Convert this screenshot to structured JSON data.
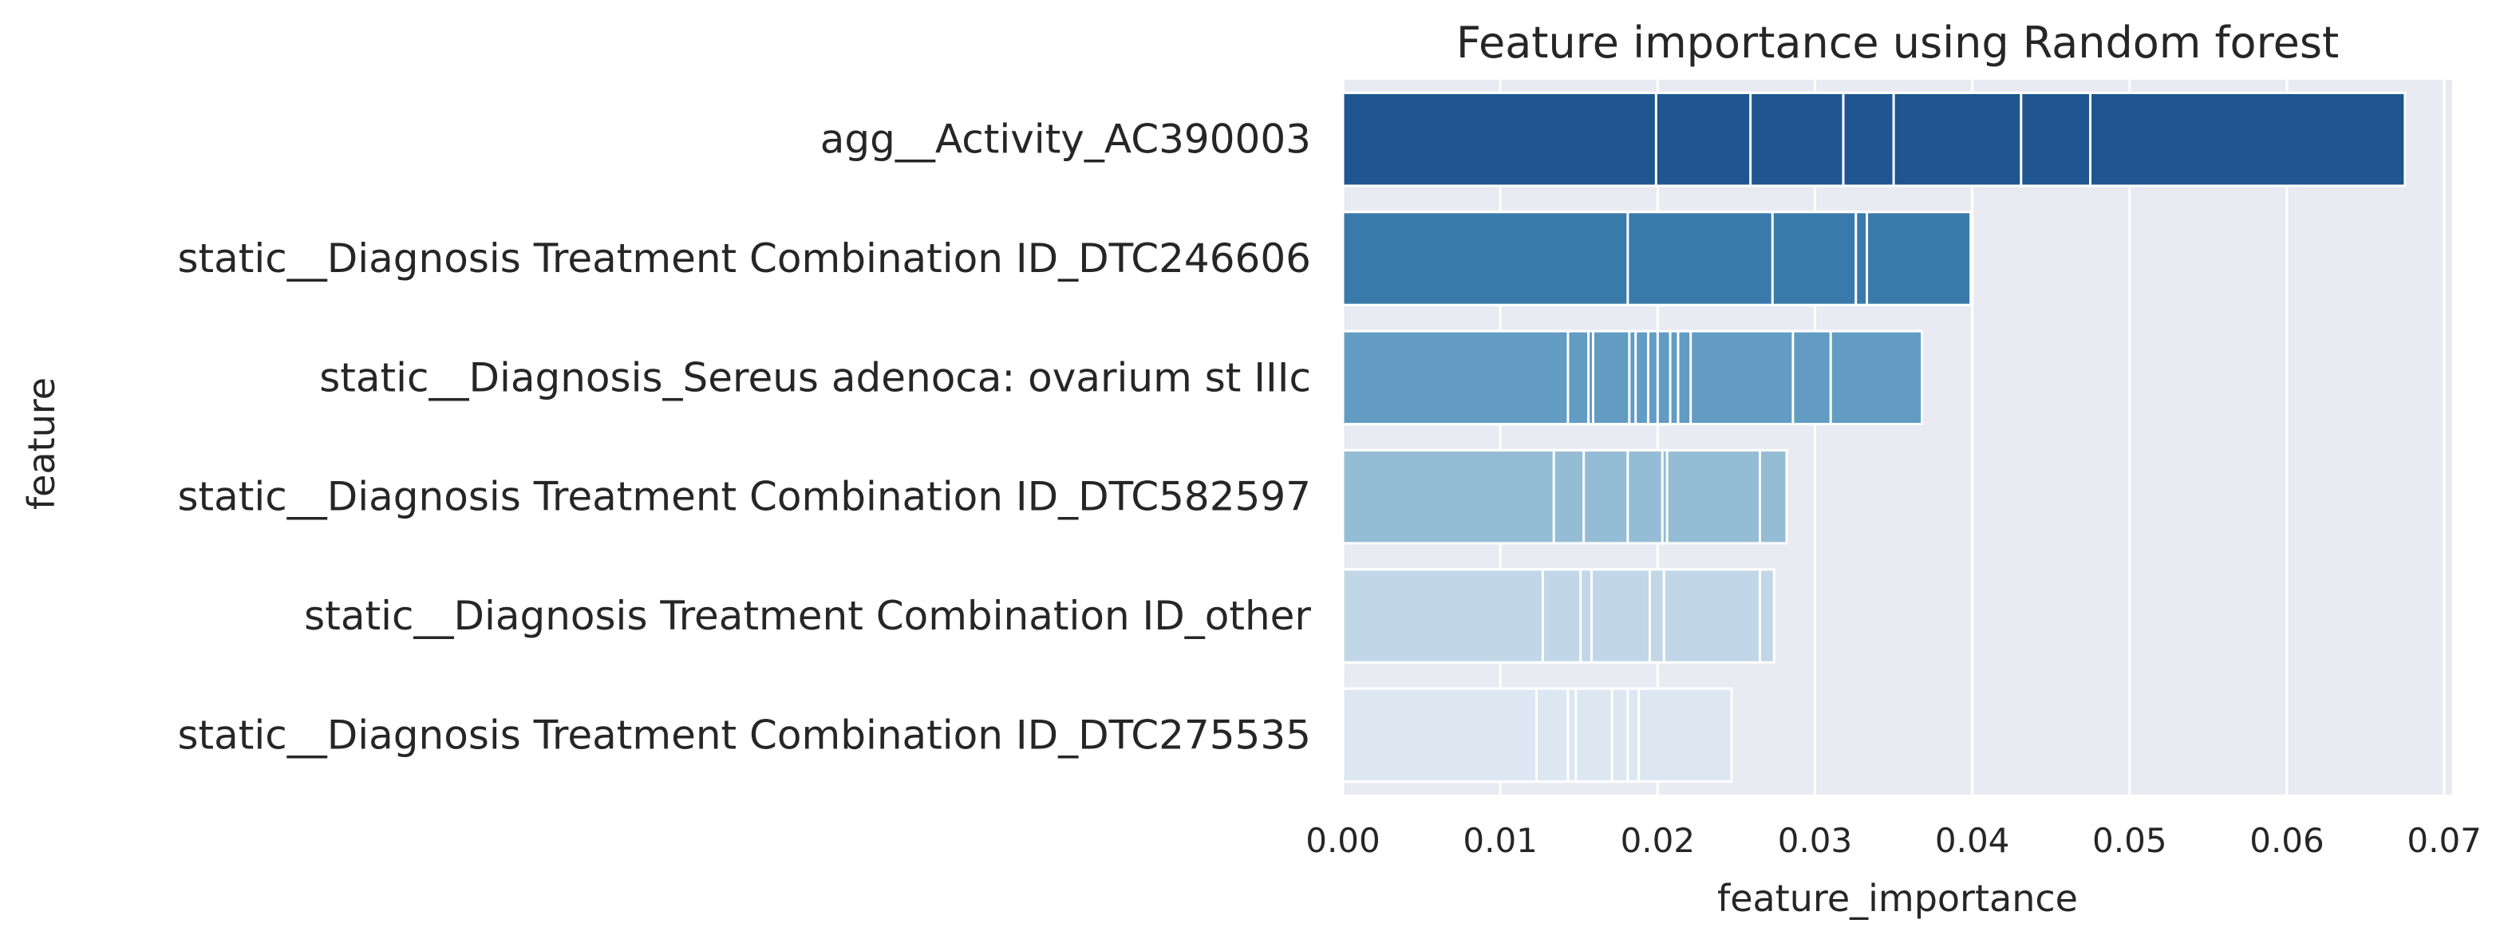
{
  "chart_data": {
    "type": "bar",
    "orientation": "horizontal",
    "title": "Feature importance using Random forest",
    "xlabel": "feature_importance",
    "ylabel": "feature",
    "xlim": [
      0,
      0.0705
    ],
    "xticks": [
      0.0,
      0.01,
      0.02,
      0.03,
      0.04,
      0.05,
      0.06,
      0.07
    ],
    "xtick_labels": [
      "0.00",
      "0.01",
      "0.02",
      "0.03",
      "0.04",
      "0.05",
      "0.06",
      "0.07"
    ],
    "grid": true,
    "legend": "none",
    "background_color": "#EAEAF2",
    "grid_color": "#FFFFFF",
    "categories": [
      "agg__Activity_AC390003",
      "static__Diagnosis Treatment Combination ID_DTC246606",
      "static__Diagnosis_Sereus adenoca: ovarium st IIIc",
      "static__Diagnosis Treatment Combination ID_DTC582597",
      "static__Diagnosis Treatment Combination ID_other",
      "static__Diagnosis Treatment Combination ID_DTC275535"
    ],
    "values": [
      0.0675,
      0.0399,
      0.0368,
      0.0282,
      0.0274,
      0.0247
    ],
    "colors": [
      "#1F568F",
      "#3A7AAB",
      "#629CC3",
      "#95BCD5",
      "#C1D7E7",
      "#DCE7F2"
    ],
    "overlapping_bars": [
      [
        0.0199,
        0.0259,
        0.0318,
        0.035,
        0.0431,
        0.0475,
        0.0675
      ],
      [
        0.0181,
        0.0273,
        0.0326,
        0.0333,
        0.0399
      ],
      [
        0.0143,
        0.0156,
        0.0159,
        0.0182,
        0.0186,
        0.0194,
        0.02,
        0.0208,
        0.0213,
        0.0221,
        0.0286,
        0.031,
        0.0368
      ],
      [
        0.0134,
        0.0153,
        0.0181,
        0.0203,
        0.0206,
        0.0265,
        0.0282
      ],
      [
        0.0127,
        0.0151,
        0.0158,
        0.0195,
        0.0204,
        0.0265,
        0.0274
      ],
      [
        0.0123,
        0.0143,
        0.0148,
        0.0171,
        0.0181,
        0.0188,
        0.0247
      ]
    ]
  }
}
